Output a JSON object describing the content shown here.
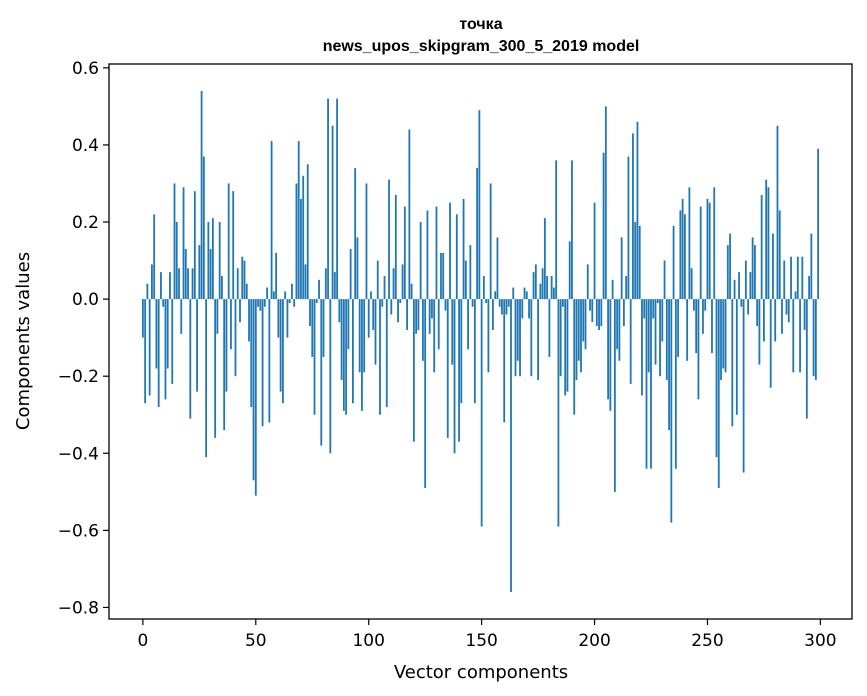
{
  "chart_data": {
    "type": "bar",
    "title_line1": "точка",
    "title_line2": "news_upos_skipgram_300_5_2019 model",
    "xlabel": "Vector components",
    "ylabel": "Components values",
    "xlim": [
      -15,
      314
    ],
    "ylim": [
      -0.83,
      0.61
    ],
    "xticks": [
      0,
      50,
      100,
      150,
      200,
      250,
      300
    ],
    "xtick_labels": [
      "0",
      "50",
      "100",
      "150",
      "200",
      "250",
      "300"
    ],
    "yticks": [
      0.6,
      0.4,
      0.2,
      0.0,
      -0.2,
      -0.4,
      -0.6,
      -0.8
    ],
    "ytick_labels": [
      "0.6",
      "0.4",
      "0.2",
      "0.0",
      "−0.2",
      "−0.4",
      "−0.6",
      "−0.8"
    ],
    "bar_color": "#1f77b4",
    "values": [
      -0.1,
      -0.27,
      0.04,
      -0.25,
      0.09,
      0.22,
      -0.18,
      -0.28,
      0.07,
      -0.02,
      -0.26,
      -0.18,
      0.07,
      -0.22,
      0.3,
      0.2,
      0.08,
      -0.09,
      0.29,
      0.13,
      0.08,
      -0.31,
      0.08,
      0.28,
      -0.24,
      0.14,
      0.54,
      0.37,
      -0.41,
      0.2,
      0.13,
      0.21,
      -0.36,
      -0.09,
      0.2,
      0.06,
      -0.34,
      -0.24,
      0.3,
      -0.13,
      0.28,
      -0.2,
      0.08,
      -0.06,
      0.11,
      0.1,
      0.04,
      -0.11,
      -0.28,
      -0.47,
      -0.51,
      -0.02,
      -0.03,
      -0.33,
      -0.02,
      0.03,
      -0.32,
      0.41,
      0.02,
      0.12,
      -0.1,
      -0.24,
      -0.27,
      0.02,
      -0.1,
      -0.01,
      0.04,
      -0.02,
      0.3,
      0.41,
      0.26,
      0.32,
      0.09,
      0.35,
      -0.07,
      -0.15,
      -0.3,
      -0.01,
      0.05,
      -0.38,
      -0.15,
      0.08,
      0.52,
      -0.4,
      0.45,
      0.07,
      0.52,
      -0.06,
      -0.21,
      -0.29,
      -0.3,
      -0.13,
      0.13,
      -0.27,
      0.34,
      0.16,
      -0.19,
      -0.29,
      -0.19,
      0.3,
      -0.1,
      0.02,
      -0.08,
      -0.17,
      0.1,
      -0.3,
      -0.02,
      0.06,
      -0.28,
      0.31,
      -0.04,
      0.08,
      0.27,
      -0.06,
      -0.01,
      0.09,
      0.24,
      -0.08,
      0.44,
      0.04,
      -0.37,
      -0.09,
      -0.08,
      0.2,
      -0.16,
      -0.49,
      0.23,
      -0.09,
      -0.05,
      -0.19,
      0.24,
      -0.13,
      0.12,
      0.12,
      -0.03,
      -0.36,
      0.25,
      -0.17,
      -0.4,
      0.22,
      -0.37,
      -0.27,
      0.26,
      0.1,
      -0.13,
      0.14,
      -0.02,
      -0.27,
      0.34,
      0.49,
      -0.59,
      0.06,
      -0.01,
      -0.19,
      0.3,
      -0.08,
      0.02,
      0.16,
      -0.02,
      -0.04,
      -0.32,
      -0.04,
      -0.02,
      -0.76,
      0.03,
      -0.2,
      -0.16,
      -0.2,
      -0.05,
      0.03,
      0.02,
      -0.05,
      -0.2,
      0.07,
      0.09,
      -0.21,
      0.04,
      0.08,
      0.21,
      0.06,
      -0.15,
      0.06,
      0.03,
      0.36,
      -0.59,
      -0.2,
      -0.02,
      -0.25,
      -0.24,
      0.15,
      0.36,
      -0.3,
      -0.21,
      -0.16,
      -0.19,
      -0.11,
      -0.13,
      0.09,
      -0.03,
      -0.06,
      0.25,
      -0.07,
      -0.08,
      -0.07,
      0.38,
      0.5,
      -0.26,
      -0.29,
      0.05,
      -0.5,
      -0.13,
      -0.16,
      0.16,
      -0.07,
      0.06,
      0.37,
      -0.22,
      0.43,
      0.2,
      0.46,
      0.19,
      -0.25,
      -0.05,
      -0.44,
      -0.19,
      -0.44,
      -0.05,
      -0.17,
      -0.01,
      -0.2,
      -0.11,
      0.1,
      -0.21,
      -0.34,
      -0.58,
      0.19,
      -0.44,
      -0.15,
      0.23,
      0.26,
      0.22,
      -0.16,
      0.29,
      0.08,
      -0.03,
      -0.14,
      -0.26,
      0.24,
      -0.09,
      -0.03,
      0.26,
      0.25,
      -0.14,
      0.29,
      -0.41,
      -0.49,
      -0.21,
      -0.18,
      -0.19,
      0.14,
      0.17,
      -0.33,
      0.05,
      -0.3,
      0.07,
      -0.02,
      -0.45,
      0.1,
      -0.04,
      0.07,
      0.16,
      0.14,
      -0.07,
      -0.17,
      0.27,
      -0.11,
      0.31,
      0.29,
      -0.23,
      0.17,
      -0.11,
      0.45,
      0.23,
      -0.09,
      0.1,
      -0.04,
      -0.06,
      0.11,
      -0.19,
      0.02,
      0.11,
      -0.19,
      0.11,
      -0.08,
      -0.31,
      0.06,
      0.17,
      -0.2,
      -0.21,
      0.39
    ]
  }
}
